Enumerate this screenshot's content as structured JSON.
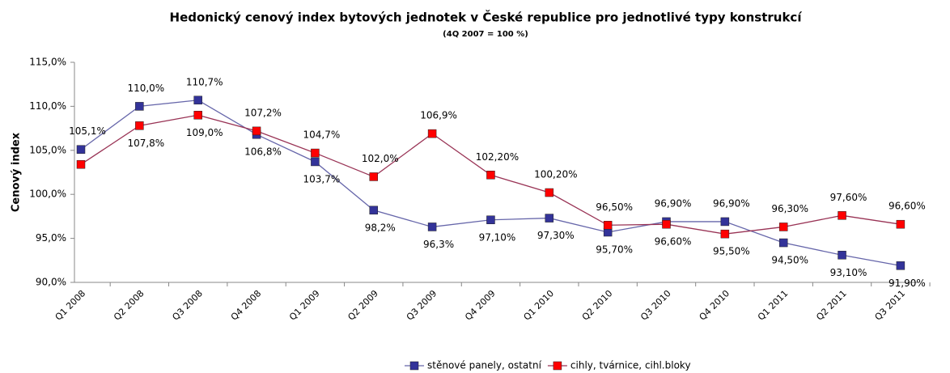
{
  "chart_data": {
    "type": "line",
    "title": "Hedonický cenový index bytových jednotek v České republice pro jednotlivé typy konstrukcí",
    "subtitle": "(4Q 2007 = 100 %)",
    "y_label": "Cenový index",
    "categories": [
      "Q1 2008",
      "Q2 2008",
      "Q3 2008",
      "Q4 2008",
      "Q1 2009",
      "Q2 2009",
      "Q3 2009",
      "Q4 2009",
      "Q1 2010",
      "Q2 2010",
      "Q3 2010",
      "Q4 2010",
      "Q1 2011",
      "Q2 2011",
      "Q3 2011"
    ],
    "series": [
      {
        "name": "stěnové panely, ostatní",
        "color": "#333399",
        "line_color": "#6666aa",
        "values": [
          105.1,
          110.0,
          110.7,
          106.8,
          103.7,
          98.2,
          96.3,
          97.1,
          97.3,
          95.7,
          96.9,
          96.9,
          94.5,
          93.1,
          91.9
        ],
        "value_labels": [
          "105,1%",
          "110,0%",
          "110,7%",
          "106,8%",
          "103,7%",
          "98,2%",
          "96,3%",
          "97,10%",
          "97,30%",
          "95,70%",
          "96,90%",
          "96,90%",
          "94,50%",
          "93,10%",
          "91,90%"
        ]
      },
      {
        "name": "cihly, tvárnice, cihl.bloky",
        "color": "#ff0000",
        "line_color": "#993355",
        "values": [
          103.4,
          107.8,
          109.0,
          107.2,
          104.7,
          102.0,
          106.9,
          102.2,
          100.2,
          96.5,
          96.6,
          95.5,
          96.3,
          97.6,
          96.6
        ],
        "value_labels": [
          null,
          "107,8%",
          "109,0%",
          "107,2%",
          "104,7%",
          "102,0%",
          "106,9%",
          "102,20%",
          "100,20%",
          "96,50%",
          "96,60%",
          "95,50%",
          "96,30%",
          "97,60%",
          "96,60%"
        ]
      }
    ],
    "ylim": [
      90,
      115
    ],
    "yticks": [
      {
        "value": 90,
        "label": "90,0%"
      },
      {
        "value": 95,
        "label": "95,0%"
      },
      {
        "value": 100,
        "label": "100,0%"
      },
      {
        "value": 105,
        "label": "105,0%"
      },
      {
        "value": 110,
        "label": "110,0%"
      },
      {
        "value": 115,
        "label": "115,0%"
      }
    ],
    "grid": false,
    "legend": "bottom"
  }
}
